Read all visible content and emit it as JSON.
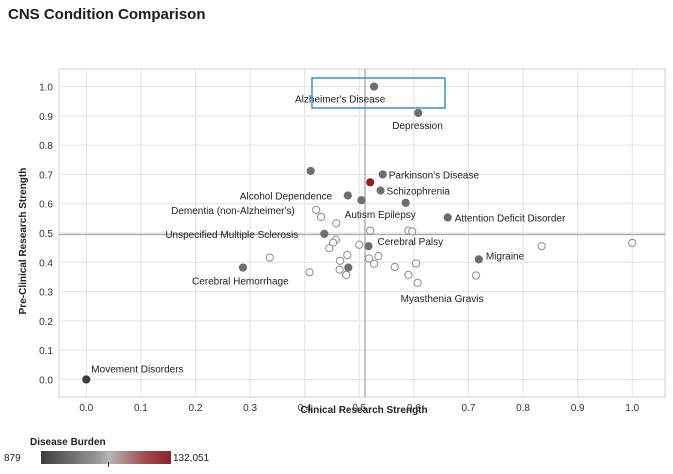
{
  "title": "CNS Condition Comparison",
  "legend": {
    "title": "Disease Burden",
    "min_label": "879",
    "max_label": "132,051",
    "colors": [
      "#3d3d3d",
      "#9b9b9b",
      "#b7b7b7",
      "#a24b4f",
      "#8e2029"
    ]
  },
  "chart_data": {
    "type": "scatter",
    "xlabel": "Clinical Research Strength",
    "ylabel": "Pre-Clinical Research Strength",
    "xlim": [
      -0.05,
      1.06
    ],
    "ylim": [
      -0.06,
      1.06
    ],
    "x_ticks": [
      "0.0",
      "0.1",
      "0.2",
      "0.3",
      "0.4",
      "0.5",
      "0.6",
      "0.7",
      "0.8",
      "0.9",
      "1.0"
    ],
    "y_ticks": [
      "0.0",
      "0.1",
      "0.2",
      "0.3",
      "0.4",
      "0.5",
      "0.6",
      "0.7",
      "0.8",
      "0.9",
      "1.0"
    ],
    "grid": true,
    "highlight_label": "Alzheimer's Disease",
    "labeled_points": [
      {
        "label": "Alzheimer's Disease",
        "x": 0.527,
        "y": 1.0,
        "color": "#6e6e6e"
      },
      {
        "label": "Depression",
        "x": 0.608,
        "y": 0.91,
        "color": "#6e6e6e"
      },
      {
        "label": "Parkinson's Disease",
        "x": 0.543,
        "y": 0.7,
        "color": "#6e6e6e"
      },
      {
        "label": "Schizophrenia",
        "x": 0.539,
        "y": 0.645,
        "color": "#6e6e6e"
      },
      {
        "label": "Alcohol Dependence",
        "x": 0.479,
        "y": 0.628,
        "color": "#6e6e6e"
      },
      {
        "label": "Dementia (non-Alzheimer's)",
        "x": 0.421,
        "y": 0.579,
        "color": "#ffffff"
      },
      {
        "label": "Autism Epilepsy",
        "x": 0.585,
        "y": 0.603,
        "color": "#6e6e6e"
      },
      {
        "label": "Attention Deficit Disorder",
        "x": 0.662,
        "y": 0.553,
        "color": "#6e6e6e"
      },
      {
        "label": "Unspecified Multiple Sclerosis",
        "x": 0.436,
        "y": 0.497,
        "color": "#6e6e6e"
      },
      {
        "label": "Cerebral Palsy",
        "x": 0.517,
        "y": 0.455,
        "color": "#6e6e6e"
      },
      {
        "label": "Migraine",
        "x": 0.719,
        "y": 0.41,
        "color": "#6e6e6e"
      },
      {
        "label": "Cerebral Hemorrhage",
        "x": 0.287,
        "y": 0.382,
        "color": "#6e6e6e"
      },
      {
        "label": "Myasthenia Gravis",
        "x": 0.607,
        "y": 0.33,
        "color": "#ffffff"
      },
      {
        "label": "Movement Disorders",
        "x": 0.0,
        "y": 0.0,
        "color": "#3d3d3d"
      }
    ],
    "points": [
      {
        "x": 0.411,
        "y": 0.712,
        "color": "#6e6e6e"
      },
      {
        "x": 0.52,
        "y": 0.673,
        "color": "#8e2029"
      },
      {
        "x": 0.504,
        "y": 0.612,
        "color": "#6e6e6e"
      },
      {
        "x": 0.43,
        "y": 0.555,
        "color": "#ffffff"
      },
      {
        "x": 0.458,
        "y": 0.533,
        "color": "#ffffff"
      },
      {
        "x": 0.52,
        "y": 0.508,
        "color": "#ffffff"
      },
      {
        "x": 0.59,
        "y": 0.508,
        "color": "#ffffff"
      },
      {
        "x": 0.597,
        "y": 0.505,
        "color": "#ffffff"
      },
      {
        "x": 0.457,
        "y": 0.477,
        "color": "#ffffff"
      },
      {
        "x": 0.452,
        "y": 0.467,
        "color": "#ffffff"
      },
      {
        "x": 0.5,
        "y": 0.46,
        "color": "#ffffff"
      },
      {
        "x": 0.445,
        "y": 0.448,
        "color": "#ffffff"
      },
      {
        "x": 0.336,
        "y": 0.416,
        "color": "#ffffff"
      },
      {
        "x": 0.478,
        "y": 0.425,
        "color": "#ffffff"
      },
      {
        "x": 0.535,
        "y": 0.421,
        "color": "#ffffff"
      },
      {
        "x": 0.465,
        "y": 0.405,
        "color": "#ffffff"
      },
      {
        "x": 0.518,
        "y": 0.413,
        "color": "#ffffff"
      },
      {
        "x": 0.527,
        "y": 0.395,
        "color": "#ffffff"
      },
      {
        "x": 0.604,
        "y": 0.396,
        "color": "#ffffff"
      },
      {
        "x": 0.565,
        "y": 0.384,
        "color": "#ffffff"
      },
      {
        "x": 0.464,
        "y": 0.375,
        "color": "#ffffff"
      },
      {
        "x": 0.48,
        "y": 0.382,
        "color": "#6e6e6e"
      },
      {
        "x": 0.409,
        "y": 0.366,
        "color": "#ffffff"
      },
      {
        "x": 0.476,
        "y": 0.357,
        "color": "#ffffff"
      },
      {
        "x": 0.59,
        "y": 0.357,
        "color": "#ffffff"
      },
      {
        "x": 0.714,
        "y": 0.355,
        "color": "#ffffff"
      },
      {
        "x": 0.834,
        "y": 0.455,
        "color": "#ffffff"
      },
      {
        "x": 1.0,
        "y": 0.466,
        "color": "#ffffff"
      }
    ]
  }
}
